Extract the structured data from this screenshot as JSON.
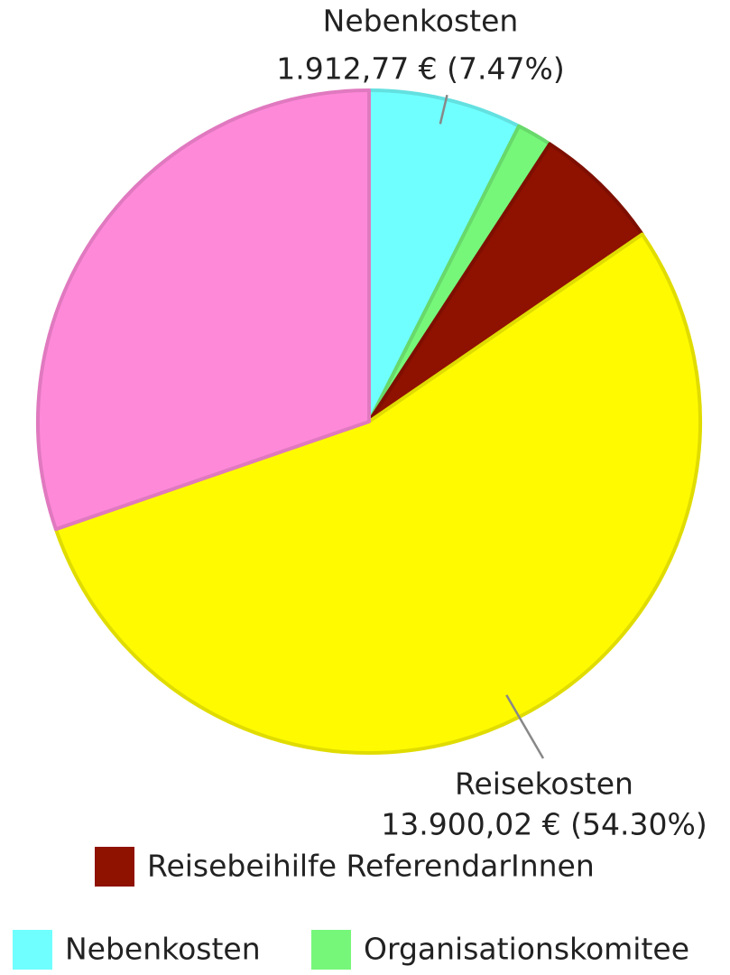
{
  "chart_data": {
    "type": "pie",
    "categories": [
      "Nebenkosten",
      "Organisationskomitee",
      "Reisebeihilfe ReferendarInnen",
      "Reisekosten",
      null
    ],
    "values": [
      1912.77,
      440,
      1600,
      13900.02,
      7748
    ],
    "value_labels": [
      "1.912,77 € (7.47%)",
      null,
      null,
      "13.900,02 € (54.30%)",
      null
    ],
    "colors": [
      "#70ffff",
      "#76f77a",
      "#8f1100",
      "#fffa00",
      "#ff89d9"
    ],
    "legend": "bottom"
  }
}
